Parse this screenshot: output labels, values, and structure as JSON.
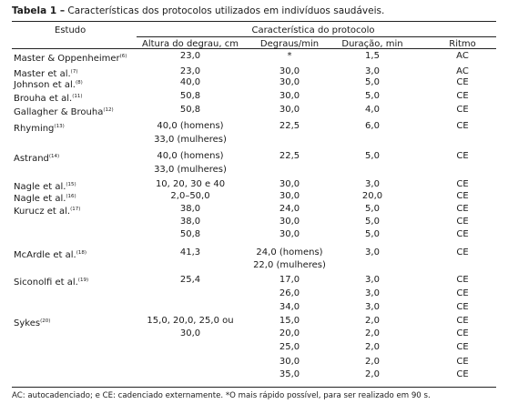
{
  "caption": {
    "label": "Tabela 1 –",
    "text": " Características dos protocolos utilizados em indivíduos saudáveis."
  },
  "header": {
    "estudo": "Estudo",
    "group": "Característica do protocolo",
    "columns": [
      "Altura do degrau, cm",
      "Degraus/min",
      "Duração, min",
      "Ritmo"
    ]
  },
  "rows": [
    {
      "study": "Master & Oppenheimer",
      "ref": "(6)",
      "altura": "23,0",
      "degraus": "*",
      "duracao": "1,5",
      "ritmo": "AC"
    },
    {
      "study": "Master et al.",
      "ref": "(7)",
      "altura": "23,0",
      "degraus": "30,0",
      "duracao": "3,0",
      "ritmo": "AC"
    },
    {
      "study": "Johnson et al.",
      "ref": "(8)",
      "altura": "40,0",
      "degraus": "30,0",
      "duracao": "5,0",
      "ritmo": "CE"
    },
    {
      "study": "Brouha et al.",
      "ref": "(11)",
      "altura": "50,8",
      "degraus": "30,0",
      "duracao": "5,0",
      "ritmo": "CE"
    },
    {
      "study": "Gallagher & Brouha",
      "ref": "(12)",
      "altura": "50,8",
      "degraus": "30,0",
      "duracao": "4,0",
      "ritmo": "CE"
    },
    {
      "study": "Rhyming",
      "ref": "(13)",
      "altura": "40,0 (homens)",
      "degraus": "22,5",
      "duracao": "6,0",
      "ritmo": "CE"
    },
    {
      "study": "",
      "ref": "",
      "altura": "33,0 (mulheres)",
      "degraus": "",
      "duracao": "",
      "ritmo": ""
    },
    {
      "study": "Astrand",
      "ref": "(14)",
      "altura": "40,0 (homens)",
      "degraus": "22,5",
      "duracao": "5,0",
      "ritmo": "CE"
    },
    {
      "study": "",
      "ref": "",
      "altura": "33,0 (mulheres)",
      "degraus": "",
      "duracao": "",
      "ritmo": ""
    },
    {
      "study": "Nagle et al.",
      "ref": "(15)",
      "altura": "10, 20, 30 e 40",
      "degraus": "30,0",
      "duracao": "3,0",
      "ritmo": "CE"
    },
    {
      "study": "Nagle et al.",
      "ref": "(16)",
      "altura": "2,0–50,0",
      "degraus": "30,0",
      "duracao": "20,0",
      "ritmo": "CE"
    },
    {
      "study": "Kurucz et al.",
      "ref": "(17)",
      "altura": "38,0",
      "degraus": "24,0",
      "duracao": "5,0",
      "ritmo": "CE"
    },
    {
      "study": "",
      "ref": "",
      "altura": "38,0",
      "degraus": "30,0",
      "duracao": "5,0",
      "ritmo": "CE"
    },
    {
      "study": "",
      "ref": "",
      "altura": "50,8",
      "degraus": "30,0",
      "duracao": "5,0",
      "ritmo": "CE"
    },
    {
      "study": "McArdle et al.",
      "ref": "(18)",
      "altura": "41,3",
      "degraus": "24,0 (homens)",
      "duracao": "3,0",
      "ritmo": "CE"
    },
    {
      "study": "",
      "ref": "",
      "altura": "",
      "degraus": "22,0 (mulheres)",
      "duracao": "",
      "ritmo": ""
    },
    {
      "study": "Siconolfi et al.",
      "ref": "(19)",
      "altura": "25,4",
      "degraus": "17,0",
      "duracao": "3,0",
      "ritmo": "CE"
    },
    {
      "study": "",
      "ref": "",
      "altura": "",
      "degraus": "26,0",
      "duracao": "3,0",
      "ritmo": "CE"
    },
    {
      "study": "",
      "ref": "",
      "altura": "",
      "degraus": "34,0",
      "duracao": "3,0",
      "ritmo": "CE"
    },
    {
      "study": "Sykes",
      "ref": "(20)",
      "altura": "15,0, 20,0, 25,0 ou",
      "degraus": "15,0",
      "duracao": "2,0",
      "ritmo": "CE"
    },
    {
      "study": "",
      "ref": "",
      "altura": "30,0",
      "degraus": "20,0",
      "duracao": "2,0",
      "ritmo": "CE"
    },
    {
      "study": "",
      "ref": "",
      "altura": "",
      "degraus": "25,0",
      "duracao": "2,0",
      "ritmo": "CE"
    },
    {
      "study": "",
      "ref": "",
      "altura": "",
      "degraus": "30,0",
      "duracao": "2,0",
      "ritmo": "CE"
    },
    {
      "study": "",
      "ref": "",
      "altura": "",
      "degraus": "35,0",
      "duracao": "2,0",
      "ritmo": "CE"
    }
  ],
  "footnote": "AC: autocadenciado; e CE: cadenciado externamente. *O mais rápido possível, para ser realizado em 90 s."
}
